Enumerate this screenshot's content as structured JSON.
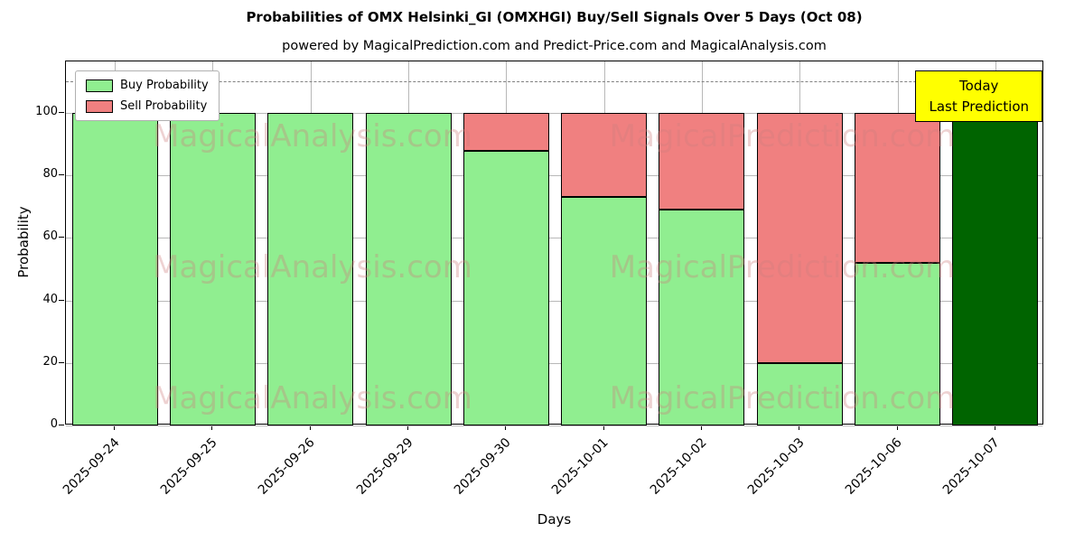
{
  "annotation": {
    "line1": "Today",
    "line2": "Last Prediction",
    "bg": "#FFFF00"
  },
  "watermarks": {
    "left_text": "MagicalAnalysis.com",
    "right_text": "MagicalPrediction.com"
  },
  "chart_data": {
    "type": "bar",
    "stacked": true,
    "title": "Probabilities of OMX Helsinki_GI (OMXHGI) Buy/Sell Signals Over 5 Days (Oct 08)",
    "subtitle": "powered by MagicalPrediction.com and Predict-Price.com and MagicalAnalysis.com",
    "xlabel": "Days",
    "ylabel": "Probability",
    "categories": [
      "2025-09-24",
      "2025-09-25",
      "2025-09-26",
      "2025-09-29",
      "2025-09-30",
      "2025-10-01",
      "2025-10-02",
      "2025-10-03",
      "2025-10-06",
      "2025-10-07"
    ],
    "series": [
      {
        "name": "Buy Probability",
        "color": "#90EE90",
        "values": [
          100,
          100,
          100,
          100,
          88,
          73,
          69,
          20,
          52,
          100
        ]
      },
      {
        "name": "Sell Probability",
        "color": "#F08080",
        "values": [
          0,
          0,
          0,
          0,
          12,
          27,
          31,
          80,
          48,
          0
        ]
      }
    ],
    "special_bars": [
      {
        "index": 9,
        "color": "#006400",
        "note": "Today / Last Prediction bar"
      }
    ],
    "yticks": [
      0,
      20,
      40,
      60,
      80,
      100
    ],
    "ylim": [
      0,
      116.5
    ],
    "dashed_line_y": 110,
    "grid": true,
    "legend_position": "upper left"
  }
}
